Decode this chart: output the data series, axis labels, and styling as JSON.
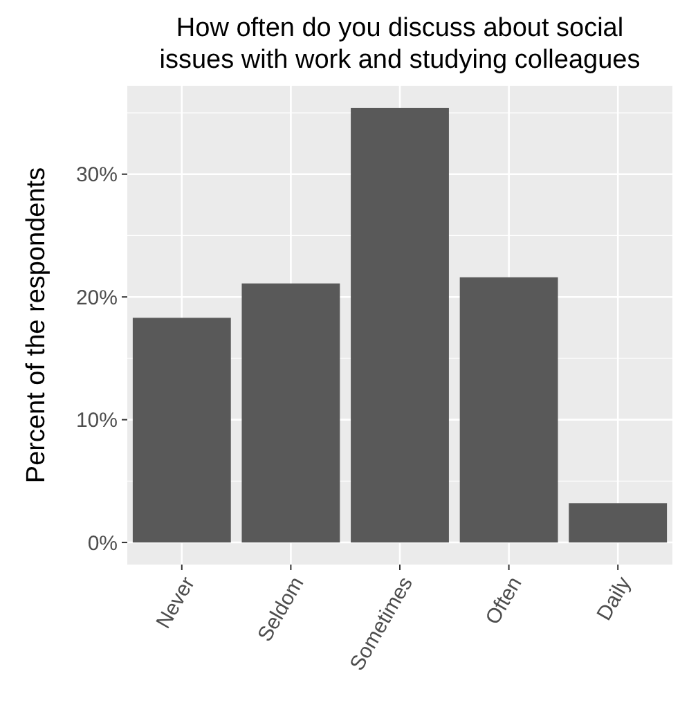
{
  "chart_data": {
    "type": "bar",
    "title": "How often do you discuss about social\nissues with work and studying colleagues",
    "ylabel": "Percent of the respondents",
    "categories": [
      "Never",
      "Seldom",
      "Sometimes",
      "Often",
      "Daily"
    ],
    "values": [
      18.3,
      21.1,
      35.4,
      21.6,
      3.2
    ],
    "color": "#595959",
    "ylim": [
      -1.8,
      37.2
    ],
    "yticks": [
      {
        "value": 0,
        "label": "0%"
      },
      {
        "value": 10,
        "label": "10%"
      },
      {
        "value": 20,
        "label": "20%"
      },
      {
        "value": 30,
        "label": "30%"
      }
    ],
    "grid": true
  }
}
